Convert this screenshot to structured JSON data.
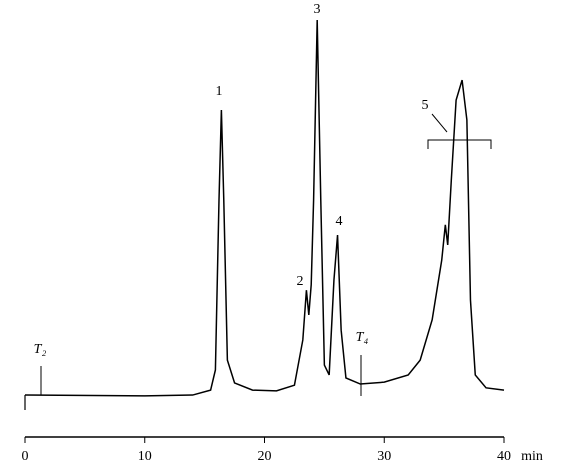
{
  "chart_data": {
    "type": "line",
    "x_label": "min",
    "xlim": [
      0,
      40
    ],
    "xticks": [
      0,
      10,
      20,
      30,
      40
    ],
    "ylim": [
      0,
      100
    ],
    "color": "#000000",
    "x": [
      0,
      10,
      14,
      15.5,
      15.9,
      16.2,
      16.4,
      16.6,
      16.9,
      17.5,
      19,
      21,
      22.5,
      23.2,
      23.5,
      23.7,
      23.9,
      24.1,
      24.4,
      24.7,
      25,
      25.4,
      25.8,
      26.1,
      26.4,
      26.8,
      28,
      30,
      32,
      33,
      34,
      34.8,
      35.1,
      35.3,
      35.6,
      36,
      36.5,
      36.9,
      37.2,
      37.6,
      38.5,
      40
    ],
    "values": [
      1.3,
      1.1,
      1.3,
      2.6,
      7.9,
      52.6,
      76.3,
      52.6,
      10.5,
      4.5,
      2.6,
      2.4,
      3.9,
      15.8,
      28.9,
      22.4,
      30.3,
      52.6,
      100,
      52.6,
      9.2,
      6.6,
      31.6,
      43.4,
      18.4,
      5.8,
      4.2,
      4.7,
      6.6,
      10.5,
      21.1,
      36.8,
      46.1,
      40.8,
      57.9,
      78.9,
      84.2,
      73.7,
      26.3,
      6.6,
      3.2,
      2.6
    ],
    "annotations": [
      "1",
      "2",
      "3",
      "4",
      "5",
      "T₂",
      "T₄"
    ]
  }
}
